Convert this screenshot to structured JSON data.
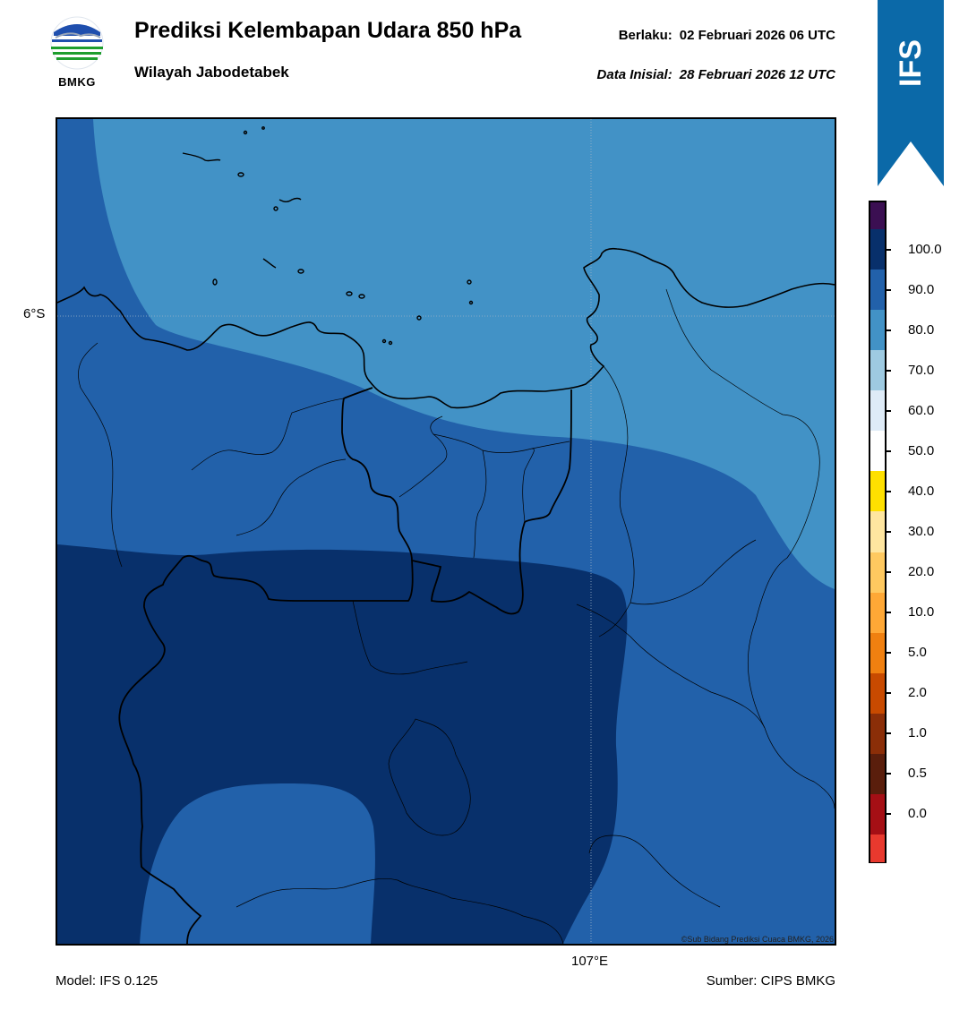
{
  "header": {
    "logo_text": "BMKG",
    "title": "Prediksi Kelembapan Udara 850 hPa",
    "subtitle": "Wilayah Jabodetabek",
    "valid_label": "Berlaku:",
    "valid_value": "02 Februari 2026 06 UTC",
    "init_label": "Data Inisial:",
    "init_value": "28 Februari 2026 12 UTC"
  },
  "ribbon": {
    "label": "IFS",
    "color": "#0b69a8"
  },
  "map": {
    "lat_label": "6°S",
    "lon_label": "107°E",
    "credit": "©Sub Bidang Prediksi Cuaca BMKG, 2026",
    "field_colors": {
      "70-80": "#4292c6",
      "80-90": "#2261aa",
      "90-100": "#08306b",
      "coastline": "#000000",
      "gridline": "#9fb3c8"
    }
  },
  "colorbar": {
    "labels": [
      "100.0",
      "90.0",
      "80.0",
      "70.0",
      "60.0",
      "50.0",
      "40.0",
      "30.0",
      "20.0",
      "10.0",
      "5.0",
      "2.0",
      "1.0",
      "0.5",
      "0.0"
    ],
    "colors": [
      "#3b0f52",
      "#08306b",
      "#2261aa",
      "#4292c6",
      "#9ecae1",
      "#deebf7",
      "#ffffff",
      "#ffe000",
      "#ffe6a0",
      "#ffc960",
      "#ffa836",
      "#f08010",
      "#c84a00",
      "#8b2e08",
      "#5a1e0c",
      "#a50f15",
      "#e8392e"
    ]
  },
  "footer": {
    "model": "Model: IFS 0.125",
    "source": "Sumber: CIPS BMKG"
  }
}
